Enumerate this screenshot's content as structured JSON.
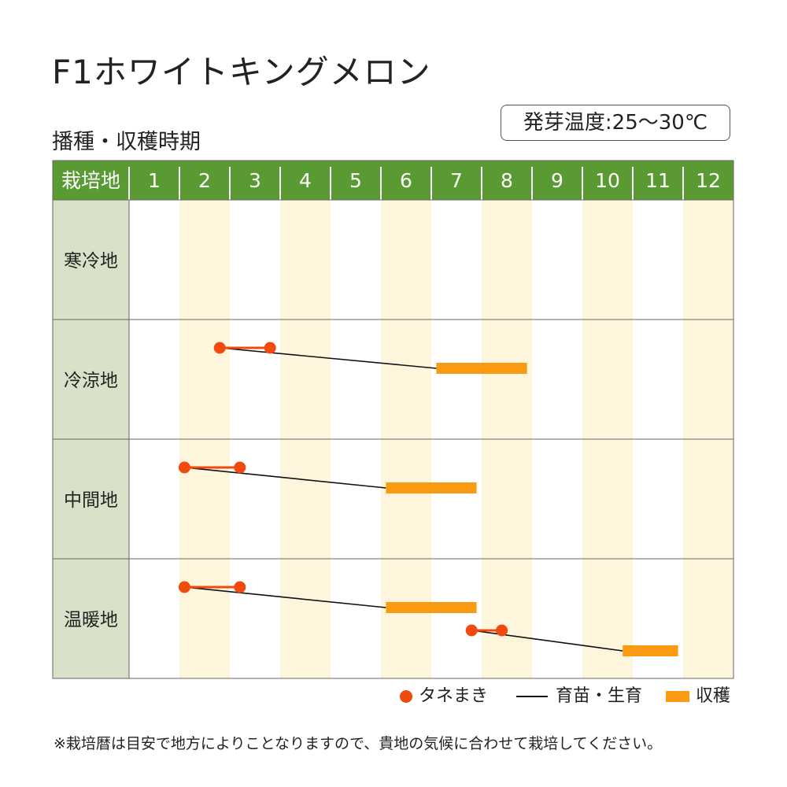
{
  "title": "F1ホワイトキングメロン",
  "subtitle": "播種・収穫時期",
  "germination_temp": "発芽温度:25〜30℃",
  "note": "※栽培暦は目安で地方によりことなりますので、貴地の気候に合わせて栽培してください。",
  "legend": {
    "sowing": "タネまき",
    "growing": "育苗・生育",
    "harvest": "収穫"
  },
  "colors": {
    "header": "#5a9a32",
    "row_label_bg": "#d8e2c8",
    "stripe": "#fdf5dc",
    "sowing": "#f04a0e",
    "growing": "#111111",
    "harvest": "#fa9a12"
  },
  "chart_data": {
    "type": "table",
    "header_label": "栽培地",
    "months": [
      "1",
      "2",
      "3",
      "4",
      "5",
      "6",
      "7",
      "8",
      "9",
      "10",
      "11",
      "12"
    ],
    "regions": [
      {
        "name": "寒冷地",
        "schedules": []
      },
      {
        "name": "冷涼地",
        "schedules": [
          {
            "sow_start": 2.8,
            "sow_end": 3.8,
            "harvest_start": 7.1,
            "harvest_end": 8.9
          }
        ]
      },
      {
        "name": "中間地",
        "schedules": [
          {
            "sow_start": 2.1,
            "sow_end": 3.2,
            "harvest_start": 6.1,
            "harvest_end": 7.9
          }
        ]
      },
      {
        "name": "温暖地",
        "schedules": [
          {
            "sow_start": 2.1,
            "sow_end": 3.2,
            "harvest_start": 6.1,
            "harvest_end": 7.9
          },
          {
            "sow_start": 7.8,
            "sow_end": 8.4,
            "harvest_start": 10.8,
            "harvest_end": 11.9
          }
        ]
      }
    ]
  }
}
